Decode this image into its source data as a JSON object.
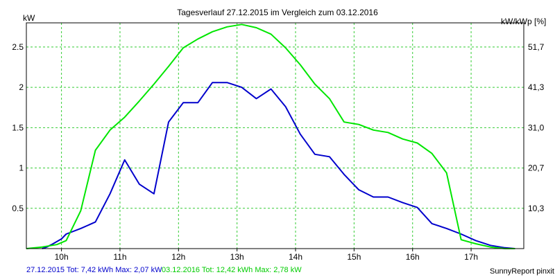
{
  "chart_data": {
    "type": "line",
    "title": "Tagesverlauf 27.12.2015 im Vergleich zum 03.12.2016",
    "ylabel": "kW",
    "ylabel_right": "kW/kWp [%]",
    "xlim": [
      9.4,
      17.9
    ],
    "ylim": [
      0,
      2.8
    ],
    "x_ticks": [
      10,
      11,
      12,
      13,
      14,
      15,
      16,
      17
    ],
    "x_tick_labels": [
      "10h",
      "11h",
      "12h",
      "13h",
      "14h",
      "15h",
      "16h",
      "17h"
    ],
    "y_ticks": [
      0.5,
      1,
      1.5,
      2,
      2.5
    ],
    "y_tick_labels": [
      "0.5",
      "1",
      "1.5",
      "2",
      "2.5"
    ],
    "y_right_ticks": [
      0.5,
      1,
      1.5,
      2,
      2.5
    ],
    "y_right_tick_labels": [
      "10,3",
      "20,7",
      "31,0",
      "41,3",
      "51,7"
    ],
    "grid": true,
    "series": [
      {
        "name": "27.12.2015",
        "color": "#0000cc",
        "x": [
          9.67,
          9.75,
          9.83,
          10.0,
          10.08,
          10.33,
          10.58,
          10.83,
          11.08,
          11.33,
          11.58,
          11.83,
          12.08,
          12.33,
          12.58,
          12.83,
          13.08,
          13.33,
          13.58,
          13.83,
          14.08,
          14.33,
          14.58,
          14.83,
          15.08,
          15.33,
          15.58,
          15.83,
          16.08,
          16.33,
          16.58,
          16.83,
          17.08,
          17.33,
          17.58,
          17.75
        ],
        "y": [
          0.0,
          0.02,
          0.05,
          0.12,
          0.18,
          0.25,
          0.33,
          0.68,
          1.1,
          0.8,
          0.68,
          1.57,
          1.81,
          1.81,
          2.06,
          2.06,
          2.0,
          1.86,
          1.98,
          1.76,
          1.42,
          1.17,
          1.14,
          0.92,
          0.73,
          0.64,
          0.64,
          0.57,
          0.51,
          0.31,
          0.25,
          0.18,
          0.1,
          0.04,
          0.01,
          0.0
        ]
      },
      {
        "name": "03.12.2016",
        "color": "#00e600",
        "x": [
          9.4,
          9.67,
          9.92,
          10.08,
          10.33,
          10.58,
          10.83,
          11.08,
          11.33,
          11.58,
          11.83,
          12.08,
          12.33,
          12.58,
          12.83,
          13.08,
          13.33,
          13.58,
          13.83,
          14.08,
          14.33,
          14.58,
          14.83,
          15.08,
          15.33,
          15.58,
          15.83,
          16.08,
          16.33,
          16.58,
          16.83,
          17.08,
          17.33,
          17.58,
          17.75
        ],
        "y": [
          0.0,
          0.02,
          0.05,
          0.1,
          0.47,
          1.22,
          1.47,
          1.63,
          1.83,
          2.04,
          2.26,
          2.49,
          2.6,
          2.69,
          2.75,
          2.78,
          2.74,
          2.66,
          2.49,
          2.28,
          2.04,
          1.86,
          1.57,
          1.54,
          1.47,
          1.44,
          1.36,
          1.31,
          1.18,
          0.94,
          0.11,
          0.06,
          0.02,
          0.0,
          0.0
        ]
      }
    ]
  },
  "footer": {
    "series1_text": "27.12.2015 Tot: 7,42 kWh Max: 2,07 kW",
    "series1_color": "#0000cc",
    "series2_text": "03.12.2016 Tot: 12,42 kWh Max: 2,78 kW",
    "series2_color": "#00cc00"
  },
  "credit": "SunnyReport pinxit",
  "colors": {
    "grid": "#33cc33",
    "frame": "#000000",
    "background": "#ffffff"
  }
}
